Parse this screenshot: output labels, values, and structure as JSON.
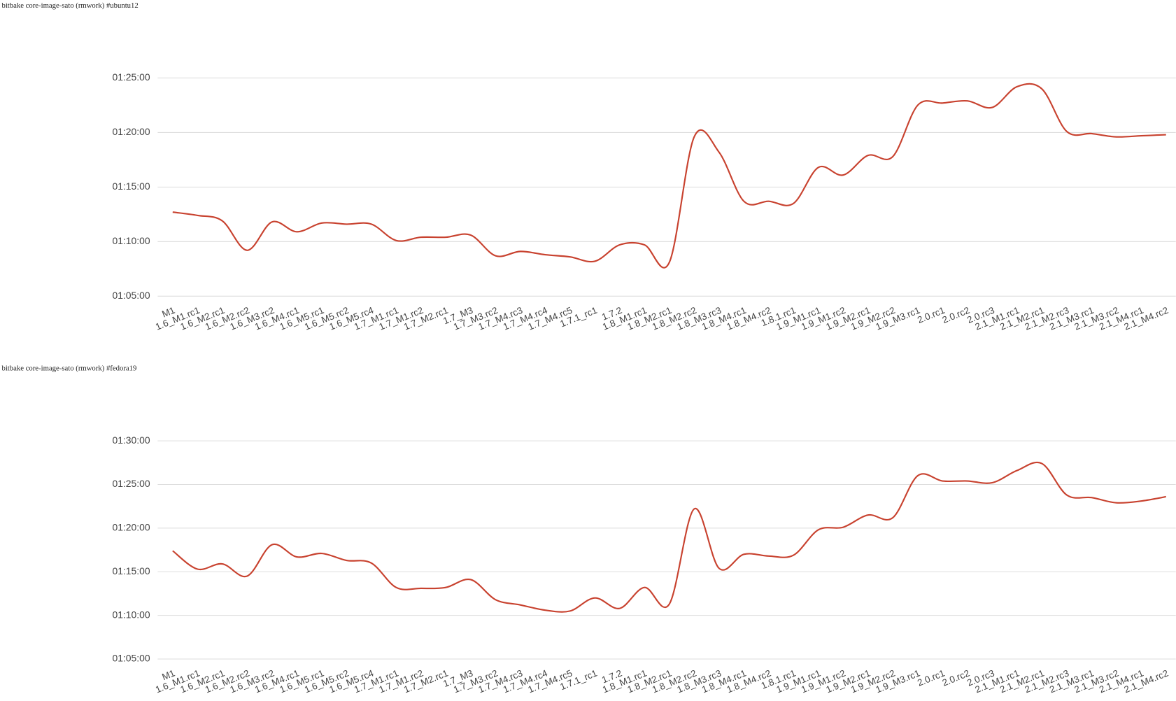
{
  "chart_data": [
    {
      "type": "line",
      "title": "bitbake core-image-sato (rmwork) #ubuntu12",
      "categories": [
        "M1",
        "1.6_M1.rc1",
        "1.6_M2.rc1",
        "1.6_M2.rc2",
        "1.6_M3.rc2",
        "1.6_M4.rc1",
        "1.6_M5.rc1",
        "1.6_M5.rc2",
        "1.6_M5.rc4",
        "1.7_M1.rc1",
        "1.7_M1.rc2",
        "1.7_M2.rc1",
        "1.7_M3",
        "1.7_M3.rc2",
        "1.7_M4.rc3",
        "1.7_M4.rc4",
        "1.7_M4.rc5",
        "1.7.1_rc1",
        "1.7.2",
        "1.8_M1.rc1",
        "1.8_M2.rc1",
        "1.8_M2.rc2",
        "1.8_M3.rc3",
        "1.8_M4.rc1",
        "1.8_M4.rc2",
        "1.8.1.rc1",
        "1.9_M1.rc1",
        "1.9_M1.rc2",
        "1.9_M2.rc1",
        "1.9_M2.rc2",
        "1.9_M3.rc1",
        "2.0.rc1",
        "2.0.rc2",
        "2.0.rc3",
        "2.1_M1.rc1",
        "2.1_M2.rc1",
        "2.1_M2.rc3",
        "2.1_M3.rc1",
        "2.1_M3.rc2",
        "2.1_M4.rc1",
        "2.1_M4.rc2"
      ],
      "values": [
        72.7,
        72.4,
        71.9,
        69.2,
        71.8,
        70.9,
        71.7,
        71.6,
        71.6,
        70.1,
        70.4,
        70.4,
        70.6,
        68.7,
        69.1,
        68.8,
        68.6,
        68.2,
        69.7,
        69.7,
        68.1,
        79.6,
        78.2,
        73.7,
        73.7,
        73.5,
        76.8,
        76.1,
        77.9,
        77.8,
        82.5,
        82.7,
        82.9,
        82.3,
        84.2,
        84.0,
        80.1,
        79.9,
        79.6,
        79.7,
        79.8
      ],
      "color": "#c8422f",
      "ylim": [
        65,
        85
      ],
      "yticks": [
        {
          "value": 65,
          "label": "01:05:00"
        },
        {
          "value": 70,
          "label": "01:10:00"
        },
        {
          "value": 75,
          "label": "01:15:00"
        },
        {
          "value": 80,
          "label": "01:20:00"
        },
        {
          "value": 85,
          "label": "01:25:00"
        }
      ],
      "grid": true
    },
    {
      "type": "line",
      "title": "bitbake core-image-sato (rmwork) #fedora19",
      "categories": [
        "M1",
        "1.6_M1.rc1",
        "1.6_M2.rc1",
        "1.6_M2.rc2",
        "1.6_M3.rc2",
        "1.6_M4.rc1",
        "1.6_M5.rc1",
        "1.6_M5.rc2",
        "1.6_M5.rc4",
        "1.7_M1.rc1",
        "1.7_M1.rc2",
        "1.7_M2.rc1",
        "1.7_M3",
        "1.7_M3.rc2",
        "1.7_M4.rc3",
        "1.7_M4.rc4",
        "1.7_M4.rc5",
        "1.7.1_rc1",
        "1.7.2",
        "1.8_M1.rc1",
        "1.8_M2.rc1",
        "1.8_M2.rc2",
        "1.8_M3.rc3",
        "1.8_M4.rc1",
        "1.8_M4.rc2",
        "1.8.1.rc1",
        "1.9_M1.rc1",
        "1.9_M1.rc2",
        "1.9_M2.rc1",
        "1.9_M2.rc2",
        "1.9_M3.rc1",
        "2.0.rc1",
        "2.0.rc2",
        "2.0.rc3",
        "2.1_M1.rc1",
        "2.1_M2.rc1",
        "2.1_M2.rc3",
        "2.1_M3.rc1",
        "2.1_M3.rc2",
        "2.1_M4.rc1",
        "2.1_M4.rc2"
      ],
      "values": [
        77.4,
        75.3,
        75.9,
        74.5,
        78.1,
        76.7,
        77.1,
        76.3,
        76.0,
        73.2,
        73.1,
        73.2,
        74.1,
        71.8,
        71.2,
        70.6,
        70.5,
        72.0,
        70.8,
        73.2,
        71.3,
        82.2,
        75.4,
        77.0,
        76.8,
        76.9,
        79.8,
        80.1,
        81.5,
        81.2,
        86.0,
        85.4,
        85.4,
        85.2,
        86.6,
        87.4,
        83.8,
        83.5,
        82.9,
        83.1,
        83.6
      ],
      "color": "#c8422f",
      "ylim": [
        65,
        90
      ],
      "yticks": [
        {
          "value": 65,
          "label": "01:05:00"
        },
        {
          "value": 70,
          "label": "01:10:00"
        },
        {
          "value": 75,
          "label": "01:15:00"
        },
        {
          "value": 80,
          "label": "01:20:00"
        },
        {
          "value": 85,
          "label": "01:25:00"
        },
        {
          "value": 90,
          "label": "01:30:00"
        }
      ],
      "grid": true
    }
  ]
}
